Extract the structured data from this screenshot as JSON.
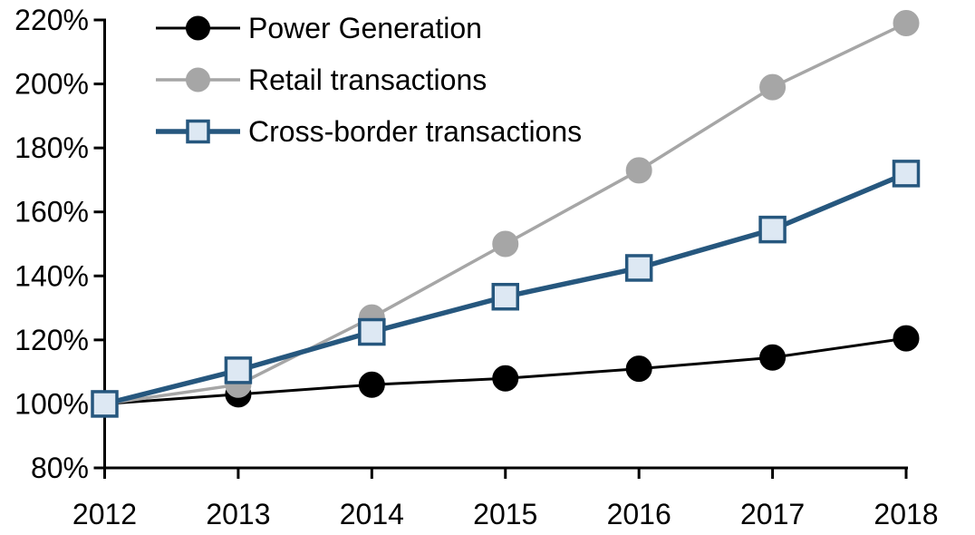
{
  "chart_data": {
    "type": "line",
    "title": "",
    "xlabel": "",
    "ylabel": "",
    "x": [
      2012,
      2013,
      2014,
      2015,
      2016,
      2017,
      2018
    ],
    "xtick_labels": [
      "2012",
      "2013",
      "2014",
      "2015",
      "2016",
      "2017",
      "2018"
    ],
    "ylim": [
      80,
      220
    ],
    "yticks": [
      80,
      100,
      120,
      140,
      160,
      180,
      200,
      220
    ],
    "ytick_labels": [
      "80%",
      "100%",
      "120%",
      "140%",
      "160%",
      "180%",
      "200%",
      "220%"
    ],
    "grid": false,
    "legend_position": "top-left",
    "series": [
      {
        "name": "Power Generation",
        "values": [
          100,
          103,
          106,
          108,
          111,
          114.5,
          120.5
        ],
        "line_color": "#000000",
        "line_width": 3,
        "marker": "circle",
        "marker_fill": "#000000",
        "marker_stroke": "#000000"
      },
      {
        "name": "Retail transactions",
        "values": [
          100,
          106,
          127,
          150,
          173,
          199,
          219
        ],
        "line_color": "#a6a6a6",
        "line_width": 3.5,
        "marker": "circle",
        "marker_fill": "#a6a6a6",
        "marker_stroke": "#a6a6a6"
      },
      {
        "name": "Cross-border transactions",
        "values": [
          100,
          110.5,
          122.5,
          133.5,
          142.5,
          154.5,
          172
        ],
        "line_color": "#26577e",
        "line_width": 5.5,
        "marker": "square",
        "marker_fill": "#dde8f3",
        "marker_stroke": "#26577e"
      }
    ],
    "axis_color": "#000000",
    "text_color": "#000000"
  }
}
